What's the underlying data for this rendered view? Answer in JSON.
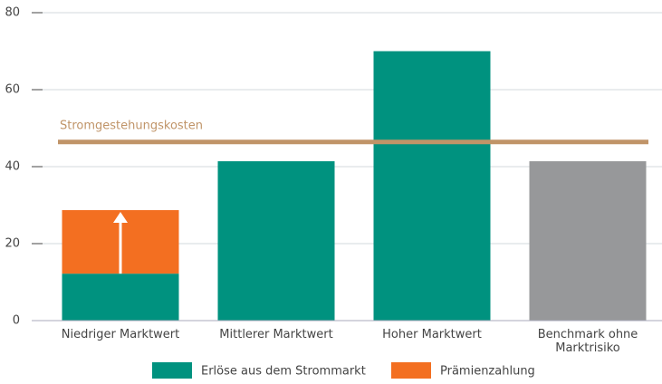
{
  "chart_data": {
    "type": "bar",
    "stacked": true,
    "categories": [
      "Niedriger Marktwert",
      "Mittlerer Marktwert",
      "Hoher Marktwert",
      "Benchmark ohne Marktrisiko"
    ],
    "series": [
      {
        "name": "Erlöse aus dem Strommarkt",
        "color": "#00927f",
        "point_colors": [
          "#00927f",
          "#00927f",
          "#00927f",
          "#97989a"
        ],
        "values": [
          12.2,
          41.4,
          70,
          41.4
        ]
      },
      {
        "name": "Prämienzahlung",
        "color": "#f36f21",
        "values": [
          16.5,
          null,
          null,
          null
        ]
      }
    ],
    "reference_line": {
      "label": "Stromgestehungskosten",
      "value": 46.4,
      "color": "#c09468"
    },
    "ylim": [
      0,
      80
    ],
    "yticks": [
      0,
      20,
      40,
      60,
      80
    ],
    "grid": true
  }
}
